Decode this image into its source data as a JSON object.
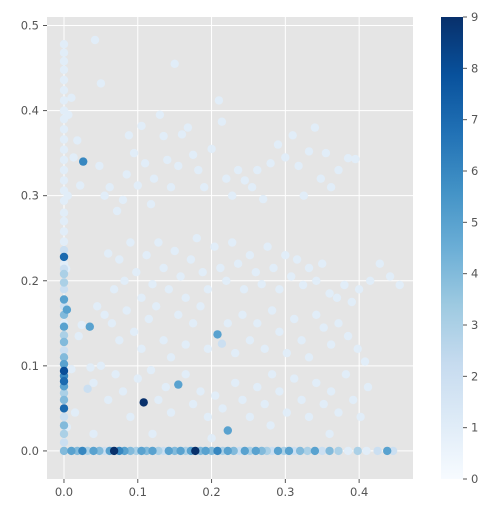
{
  "chart_data": {
    "type": "scatter",
    "title": "",
    "xlabel": "",
    "ylabel": "",
    "xlim": [
      -0.023,
      0.473
    ],
    "ylim": [
      -0.033,
      0.51
    ],
    "x_ticks": [
      0.0,
      0.1,
      0.2,
      0.3,
      0.4
    ],
    "x_tick_labels": [
      "0.0",
      "0.1",
      "0.2",
      "0.3",
      "0.4"
    ],
    "y_ticks": [
      0.0,
      0.1,
      0.2,
      0.3,
      0.4,
      0.5
    ],
    "y_tick_labels": [
      "0.0",
      "0.1",
      "0.2",
      "0.3",
      "0.4",
      "0.5"
    ],
    "grid": true,
    "colormap": "Blues",
    "colorbar": {
      "min": 0,
      "max": 9,
      "ticks": [
        0,
        1,
        2,
        3,
        4,
        5,
        6,
        7,
        8,
        9
      ],
      "tick_labels": [
        "0",
        "1",
        "2",
        "3",
        "4",
        "5",
        "6",
        "7",
        "8",
        "9"
      ]
    },
    "colors": {
      "plot_background": "#e5e5e5",
      "grid": "#ffffff",
      "tick_text": "#555555",
      "cmap_low": "#f7fbff",
      "cmap_high": "#08306b"
    },
    "points": [
      [
        0.0,
        0.478,
        1
      ],
      [
        0.0,
        0.468,
        1
      ],
      [
        0.0,
        0.458,
        1
      ],
      [
        0.0,
        0.448,
        1
      ],
      [
        0.0,
        0.436,
        1
      ],
      [
        0.0,
        0.424,
        1
      ],
      [
        0.0,
        0.412,
        1
      ],
      [
        0.0,
        0.4,
        1
      ],
      [
        0.0,
        0.39,
        1
      ],
      [
        0.0,
        0.378,
        1
      ],
      [
        0.0,
        0.366,
        1
      ],
      [
        0.0,
        0.354,
        1
      ],
      [
        0.0,
        0.342,
        1
      ],
      [
        0.0,
        0.33,
        1
      ],
      [
        0.0,
        0.318,
        1
      ],
      [
        0.0,
        0.306,
        1
      ],
      [
        0.0,
        0.294,
        1
      ],
      [
        0.0,
        0.28,
        1
      ],
      [
        0.0,
        0.27,
        1
      ],
      [
        0.0,
        0.258,
        1
      ],
      [
        0.0,
        0.246,
        1
      ],
      [
        0.0,
        0.236,
        2
      ],
      [
        0.0,
        0.228,
        7
      ],
      [
        0.0,
        0.22,
        1
      ],
      [
        0.0,
        0.214,
        2
      ],
      [
        0.0,
        0.208,
        3
      ],
      [
        0.0,
        0.198,
        3
      ],
      [
        0.0,
        0.19,
        2
      ],
      [
        0.0,
        0.178,
        5
      ],
      [
        0.0,
        0.17,
        2
      ],
      [
        0.0,
        0.16,
        4
      ],
      [
        0.0,
        0.15,
        1
      ],
      [
        0.0,
        0.146,
        5
      ],
      [
        0.0,
        0.136,
        3
      ],
      [
        0.0,
        0.128,
        4
      ],
      [
        0.0,
        0.118,
        2
      ],
      [
        0.0,
        0.11,
        4
      ],
      [
        0.0,
        0.102,
        5
      ],
      [
        0.0,
        0.094,
        8
      ],
      [
        0.0,
        0.088,
        6
      ],
      [
        0.0,
        0.082,
        7
      ],
      [
        0.0,
        0.076,
        5
      ],
      [
        0.0,
        0.068,
        3
      ],
      [
        0.0,
        0.06,
        4
      ],
      [
        0.0,
        0.05,
        7
      ],
      [
        0.0,
        0.04,
        2
      ],
      [
        0.0,
        0.03,
        4
      ],
      [
        0.0,
        0.02,
        3
      ],
      [
        0.0,
        0.01,
        2
      ],
      [
        0.0,
        0.0,
        4
      ],
      [
        0.003,
        0.214,
        1
      ],
      [
        0.004,
        0.166,
        5
      ],
      [
        0.004,
        0.028,
        1
      ],
      [
        0.005,
        0.3,
        1
      ],
      [
        0.006,
        0.395,
        1
      ],
      [
        0.01,
        0.415,
        1
      ],
      [
        0.013,
        0.345,
        1
      ],
      [
        0.018,
        0.365,
        1
      ],
      [
        0.022,
        0.312,
        1
      ],
      [
        0.026,
        0.34,
        6
      ],
      [
        0.02,
        0.135,
        1
      ],
      [
        0.024,
        0.148,
        1
      ],
      [
        0.035,
        0.146,
        5
      ],
      [
        0.032,
        0.073,
        2
      ],
      [
        0.036,
        0.098,
        1
      ],
      [
        0.01,
        0.096,
        1
      ],
      [
        0.015,
        0.045,
        1
      ],
      [
        0.042,
        0.483,
        1
      ],
      [
        0.05,
        0.432,
        1
      ],
      [
        0.048,
        0.335,
        1
      ],
      [
        0.055,
        0.3,
        1
      ],
      [
        0.062,
        0.31,
        1
      ],
      [
        0.072,
        0.282,
        1
      ],
      [
        0.08,
        0.295,
        1
      ],
      [
        0.085,
        0.325,
        1
      ],
      [
        0.088,
        0.371,
        1
      ],
      [
        0.095,
        0.35,
        1
      ],
      [
        0.1,
        0.312,
        1
      ],
      [
        0.105,
        0.382,
        1
      ],
      [
        0.11,
        0.338,
        1
      ],
      [
        0.118,
        0.29,
        1
      ],
      [
        0.122,
        0.32,
        1
      ],
      [
        0.13,
        0.395,
        1
      ],
      [
        0.135,
        0.37,
        1
      ],
      [
        0.14,
        0.342,
        1
      ],
      [
        0.145,
        0.31,
        1
      ],
      [
        0.15,
        0.455,
        1
      ],
      [
        0.155,
        0.335,
        1
      ],
      [
        0.16,
        0.372,
        1
      ],
      [
        0.168,
        0.38,
        1
      ],
      [
        0.175,
        0.348,
        1
      ],
      [
        0.182,
        0.33,
        1
      ],
      [
        0.19,
        0.31,
        1
      ],
      [
        0.2,
        0.355,
        1
      ],
      [
        0.21,
        0.412,
        1
      ],
      [
        0.214,
        0.387,
        1
      ],
      [
        0.22,
        0.32,
        1
      ],
      [
        0.228,
        0.3,
        1
      ],
      [
        0.236,
        0.33,
        1
      ],
      [
        0.245,
        0.318,
        1
      ],
      [
        0.255,
        0.31,
        1
      ],
      [
        0.262,
        0.33,
        1
      ],
      [
        0.27,
        0.296,
        1
      ],
      [
        0.28,
        0.338,
        1
      ],
      [
        0.29,
        0.36,
        1
      ],
      [
        0.3,
        0.345,
        1
      ],
      [
        0.31,
        0.371,
        1
      ],
      [
        0.318,
        0.335,
        1
      ],
      [
        0.325,
        0.3,
        1
      ],
      [
        0.332,
        0.352,
        1
      ],
      [
        0.34,
        0.38,
        1
      ],
      [
        0.348,
        0.32,
        1
      ],
      [
        0.355,
        0.35,
        1
      ],
      [
        0.362,
        0.31,
        1
      ],
      [
        0.372,
        0.33,
        1
      ],
      [
        0.385,
        0.344,
        1
      ],
      [
        0.395,
        0.343,
        1
      ],
      [
        0.06,
        0.232,
        1
      ],
      [
        0.068,
        0.19,
        1
      ],
      [
        0.075,
        0.225,
        1
      ],
      [
        0.082,
        0.2,
        1
      ],
      [
        0.09,
        0.245,
        1
      ],
      [
        0.098,
        0.21,
        1
      ],
      [
        0.105,
        0.18,
        1
      ],
      [
        0.112,
        0.23,
        1
      ],
      [
        0.12,
        0.196,
        1
      ],
      [
        0.128,
        0.245,
        1
      ],
      [
        0.135,
        0.215,
        1
      ],
      [
        0.142,
        0.19,
        1
      ],
      [
        0.15,
        0.235,
        1
      ],
      [
        0.158,
        0.205,
        1
      ],
      [
        0.165,
        0.18,
        1
      ],
      [
        0.172,
        0.225,
        1
      ],
      [
        0.18,
        0.25,
        1
      ],
      [
        0.188,
        0.21,
        1
      ],
      [
        0.195,
        0.19,
        1
      ],
      [
        0.204,
        0.24,
        1
      ],
      [
        0.212,
        0.215,
        1
      ],
      [
        0.22,
        0.2,
        1
      ],
      [
        0.228,
        0.245,
        1
      ],
      [
        0.236,
        0.22,
        1
      ],
      [
        0.244,
        0.19,
        1
      ],
      [
        0.252,
        0.23,
        1
      ],
      [
        0.26,
        0.21,
        1
      ],
      [
        0.268,
        0.196,
        1
      ],
      [
        0.276,
        0.24,
        1
      ],
      [
        0.284,
        0.215,
        1
      ],
      [
        0.292,
        0.19,
        1
      ],
      [
        0.3,
        0.23,
        1
      ],
      [
        0.308,
        0.205,
        1
      ],
      [
        0.316,
        0.225,
        1
      ],
      [
        0.324,
        0.195,
        1
      ],
      [
        0.332,
        0.215,
        1
      ],
      [
        0.342,
        0.2,
        1
      ],
      [
        0.35,
        0.22,
        1
      ],
      [
        0.36,
        0.185,
        1
      ],
      [
        0.37,
        0.18,
        1
      ],
      [
        0.38,
        0.195,
        1
      ],
      [
        0.39,
        0.175,
        1
      ],
      [
        0.4,
        0.19,
        1
      ],
      [
        0.415,
        0.2,
        1
      ],
      [
        0.428,
        0.22,
        1
      ],
      [
        0.442,
        0.205,
        1
      ],
      [
        0.455,
        0.195,
        1
      ],
      [
        0.045,
        0.17,
        1
      ],
      [
        0.055,
        0.16,
        1
      ],
      [
        0.065,
        0.15,
        1
      ],
      [
        0.075,
        0.13,
        1
      ],
      [
        0.085,
        0.165,
        1
      ],
      [
        0.095,
        0.14,
        1
      ],
      [
        0.105,
        0.12,
        1
      ],
      [
        0.115,
        0.155,
        1
      ],
      [
        0.125,
        0.17,
        1
      ],
      [
        0.135,
        0.13,
        1
      ],
      [
        0.145,
        0.11,
        1
      ],
      [
        0.155,
        0.16,
        1
      ],
      [
        0.165,
        0.125,
        1
      ],
      [
        0.175,
        0.15,
        1
      ],
      [
        0.185,
        0.17,
        1
      ],
      [
        0.195,
        0.12,
        1
      ],
      [
        0.208,
        0.137,
        5
      ],
      [
        0.214,
        0.126,
        2
      ],
      [
        0.222,
        0.15,
        1
      ],
      [
        0.232,
        0.115,
        1
      ],
      [
        0.242,
        0.16,
        1
      ],
      [
        0.252,
        0.13,
        1
      ],
      [
        0.262,
        0.15,
        1
      ],
      [
        0.272,
        0.12,
        1
      ],
      [
        0.282,
        0.165,
        1
      ],
      [
        0.292,
        0.14,
        1
      ],
      [
        0.302,
        0.115,
        1
      ],
      [
        0.312,
        0.155,
        1
      ],
      [
        0.322,
        0.13,
        1
      ],
      [
        0.332,
        0.11,
        1
      ],
      [
        0.342,
        0.16,
        1
      ],
      [
        0.352,
        0.145,
        1
      ],
      [
        0.362,
        0.125,
        1
      ],
      [
        0.372,
        0.15,
        1
      ],
      [
        0.385,
        0.135,
        1
      ],
      [
        0.398,
        0.12,
        1
      ],
      [
        0.408,
        0.105,
        1
      ],
      [
        0.04,
        0.08,
        1
      ],
      [
        0.05,
        0.1,
        1
      ],
      [
        0.06,
        0.06,
        1
      ],
      [
        0.07,
        0.09,
        1
      ],
      [
        0.08,
        0.07,
        1
      ],
      [
        0.09,
        0.04,
        1
      ],
      [
        0.1,
        0.085,
        1
      ],
      [
        0.108,
        0.057,
        9
      ],
      [
        0.118,
        0.095,
        1
      ],
      [
        0.128,
        0.06,
        1
      ],
      [
        0.138,
        0.075,
        1
      ],
      [
        0.145,
        0.045,
        1
      ],
      [
        0.155,
        0.078,
        5
      ],
      [
        0.165,
        0.09,
        1
      ],
      [
        0.175,
        0.055,
        1
      ],
      [
        0.185,
        0.07,
        1
      ],
      [
        0.195,
        0.04,
        1
      ],
      [
        0.205,
        0.065,
        1
      ],
      [
        0.215,
        0.05,
        1
      ],
      [
        0.222,
        0.024,
        5
      ],
      [
        0.232,
        0.08,
        1
      ],
      [
        0.242,
        0.06,
        1
      ],
      [
        0.252,
        0.04,
        1
      ],
      [
        0.262,
        0.075,
        1
      ],
      [
        0.272,
        0.055,
        1
      ],
      [
        0.282,
        0.09,
        1
      ],
      [
        0.292,
        0.07,
        1
      ],
      [
        0.302,
        0.045,
        1
      ],
      [
        0.312,
        0.085,
        1
      ],
      [
        0.322,
        0.06,
        1
      ],
      [
        0.332,
        0.04,
        1
      ],
      [
        0.342,
        0.08,
        1
      ],
      [
        0.352,
        0.055,
        1
      ],
      [
        0.362,
        0.07,
        1
      ],
      [
        0.372,
        0.045,
        1
      ],
      [
        0.382,
        0.09,
        1
      ],
      [
        0.392,
        0.06,
        1
      ],
      [
        0.402,
        0.04,
        1
      ],
      [
        0.412,
        0.075,
        1
      ],
      [
        0.04,
        0.02,
        1
      ],
      [
        0.12,
        0.02,
        1
      ],
      [
        0.2,
        0.015,
        1
      ],
      [
        0.28,
        0.03,
        1
      ],
      [
        0.36,
        0.02,
        1
      ],
      [
        0.01,
        0.0,
        5
      ],
      [
        0.018,
        0.0,
        4
      ],
      [
        0.025,
        0.0,
        6
      ],
      [
        0.032,
        0.0,
        3
      ],
      [
        0.04,
        0.0,
        5
      ],
      [
        0.048,
        0.0,
        4
      ],
      [
        0.055,
        0.0,
        2
      ],
      [
        0.062,
        0.0,
        5
      ],
      [
        0.068,
        0.0,
        9
      ],
      [
        0.075,
        0.0,
        6
      ],
      [
        0.082,
        0.0,
        5
      ],
      [
        0.09,
        0.0,
        4
      ],
      [
        0.098,
        0.0,
        3
      ],
      [
        0.105,
        0.0,
        5
      ],
      [
        0.112,
        0.0,
        4
      ],
      [
        0.12,
        0.0,
        5
      ],
      [
        0.128,
        0.0,
        3
      ],
      [
        0.135,
        0.0,
        2
      ],
      [
        0.142,
        0.0,
        5
      ],
      [
        0.15,
        0.0,
        4
      ],
      [
        0.158,
        0.0,
        5
      ],
      [
        0.165,
        0.0,
        3
      ],
      [
        0.172,
        0.0,
        5
      ],
      [
        0.178,
        0.0,
        9
      ],
      [
        0.185,
        0.0,
        4
      ],
      [
        0.192,
        0.0,
        5
      ],
      [
        0.2,
        0.0,
        4
      ],
      [
        0.208,
        0.0,
        6
      ],
      [
        0.215,
        0.0,
        3
      ],
      [
        0.222,
        0.0,
        5
      ],
      [
        0.23,
        0.0,
        4
      ],
      [
        0.238,
        0.0,
        2
      ],
      [
        0.245,
        0.0,
        5
      ],
      [
        0.252,
        0.0,
        3
      ],
      [
        0.26,
        0.0,
        5
      ],
      [
        0.268,
        0.0,
        4
      ],
      [
        0.275,
        0.0,
        3
      ],
      [
        0.282,
        0.0,
        2
      ],
      [
        0.29,
        0.0,
        5
      ],
      [
        0.298,
        0.0,
        3
      ],
      [
        0.305,
        0.0,
        5
      ],
      [
        0.312,
        0.0,
        2
      ],
      [
        0.32,
        0.0,
        4
      ],
      [
        0.33,
        0.0,
        3
      ],
      [
        0.34,
        0.0,
        5
      ],
      [
        0.35,
        0.0,
        2
      ],
      [
        0.36,
        0.0,
        4
      ],
      [
        0.372,
        0.0,
        3
      ],
      [
        0.385,
        0.0,
        1
      ],
      [
        0.398,
        0.0,
        3
      ],
      [
        0.41,
        0.0,
        1
      ],
      [
        0.425,
        0.0,
        2
      ],
      [
        0.438,
        0.0,
        5
      ],
      [
        0.446,
        0.0,
        2
      ]
    ]
  }
}
